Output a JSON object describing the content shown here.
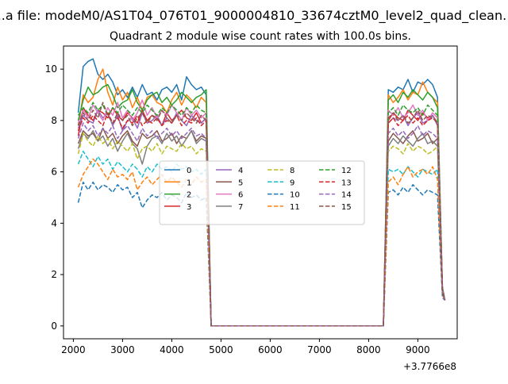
{
  "chart_data": {
    "type": "line",
    "suptitle": "...a file: modeM0/AS1T04_076T01_9000004810_33674cztM0_level2_quad_clean...",
    "title": "Quadrant 2 module wise count rates with 100.0s bins.",
    "xlabel": "",
    "ylabel": "",
    "x_offset_label": "+3.7766e8",
    "xlim": [
      1800,
      9800
    ],
    "ylim": [
      -0.5,
      10.9
    ],
    "xticks": [
      2000,
      3000,
      4000,
      5000,
      6000,
      7000,
      8000,
      9000
    ],
    "yticks": [
      0,
      2,
      4,
      6,
      8,
      10
    ],
    "grid": false,
    "legend_position": "center",
    "legend_columns": 4,
    "x": [
      2100,
      2200,
      2300,
      2400,
      2500,
      2600,
      2700,
      2800,
      2900,
      3000,
      3100,
      3200,
      3300,
      3400,
      3500,
      3600,
      3700,
      3800,
      3900,
      4000,
      4100,
      4200,
      4300,
      4400,
      4500,
      4600,
      4700,
      4800,
      4900,
      5000,
      8200,
      8300,
      8400,
      8500,
      8600,
      8700,
      8800,
      8900,
      9000,
      9100,
      9200,
      9300,
      9400,
      9500,
      9550
    ],
    "series": [
      {
        "name": "0",
        "color": "#1f77b4",
        "dash": "solid",
        "values": [
          8.3,
          10.1,
          10.3,
          10.4,
          9.8,
          9.6,
          9.8,
          9.5,
          9.0,
          9.2,
          8.9,
          9.3,
          8.9,
          9.4,
          9.0,
          9.1,
          8.8,
          9.2,
          9.3,
          9.1,
          9.4,
          8.8,
          9.7,
          9.4,
          9.2,
          9.3,
          9.0,
          0.0,
          0.0,
          0.0,
          0.0,
          0.0,
          9.2,
          9.1,
          9.3,
          9.2,
          9.6,
          9.1,
          9.5,
          9.4,
          9.6,
          9.4,
          8.9,
          1.5,
          1.0
        ]
      },
      {
        "name": "1",
        "color": "#ff7f0e",
        "dash": "solid",
        "values": [
          7.8,
          9.0,
          8.7,
          8.9,
          9.6,
          10.0,
          9.1,
          8.6,
          9.3,
          8.8,
          9.1,
          8.5,
          8.9,
          8.4,
          8.9,
          9.0,
          8.7,
          8.6,
          8.3,
          8.8,
          9.1,
          8.6,
          9.0,
          8.8,
          8.5,
          8.9,
          8.7,
          0.0,
          0.0,
          0.0,
          0.0,
          0.0,
          9.0,
          8.7,
          8.9,
          9.2,
          8.8,
          9.1,
          9.0,
          9.5,
          9.1,
          8.9,
          8.7,
          1.5,
          1.0
        ]
      },
      {
        "name": "2",
        "color": "#2ca02c",
        "dash": "solid",
        "values": [
          8.0,
          8.8,
          9.3,
          9.0,
          9.1,
          9.3,
          9.4,
          9.0,
          8.5,
          8.7,
          8.8,
          9.2,
          8.7,
          8.4,
          8.8,
          9.0,
          9.1,
          8.7,
          8.9,
          8.6,
          8.8,
          9.1,
          8.9,
          8.7,
          8.9,
          9.0,
          9.2,
          0.0,
          0.0,
          0.0,
          0.0,
          0.0,
          8.8,
          9.0,
          8.7,
          9.1,
          8.9,
          9.2,
          9.0,
          8.8,
          9.1,
          8.9,
          8.5,
          1.5,
          1.0
        ]
      },
      {
        "name": "3",
        "color": "#d62728",
        "dash": "solid",
        "values": [
          7.4,
          8.5,
          8.2,
          8.0,
          8.4,
          8.3,
          8.1,
          8.5,
          8.2,
          8.0,
          8.3,
          8.1,
          7.9,
          8.4,
          8.0,
          8.2,
          8.1,
          7.8,
          8.3,
          8.0,
          8.2,
          8.4,
          8.1,
          8.0,
          8.3,
          7.9,
          8.1,
          0.0,
          0.0,
          0.0,
          0.0,
          0.0,
          8.0,
          8.3,
          8.1,
          8.0,
          8.4,
          8.2,
          8.0,
          8.3,
          8.1,
          8.2,
          7.9,
          1.4,
          1.0
        ]
      },
      {
        "name": "4",
        "color": "#9467bd",
        "dash": "solid",
        "values": [
          7.7,
          8.2,
          8.0,
          7.9,
          8.4,
          8.1,
          8.3,
          7.8,
          8.2,
          7.6,
          8.0,
          8.1,
          7.7,
          8.3,
          7.9,
          8.0,
          8.2,
          7.8,
          8.1,
          7.9,
          8.3,
          8.0,
          7.8,
          8.2,
          8.0,
          7.9,
          8.1,
          0.0,
          0.0,
          0.0,
          0.0,
          0.0,
          7.9,
          8.1,
          8.0,
          8.2,
          7.8,
          8.1,
          8.3,
          7.9,
          8.0,
          8.2,
          7.8,
          1.4,
          1.0
        ]
      },
      {
        "name": "5",
        "color": "#8c564b",
        "dash": "solid",
        "values": [
          7.1,
          7.6,
          7.4,
          7.5,
          7.2,
          7.7,
          7.3,
          7.5,
          7.1,
          7.4,
          7.6,
          7.2,
          7.0,
          7.5,
          7.3,
          7.4,
          7.6,
          7.2,
          7.3,
          7.5,
          7.1,
          7.4,
          7.3,
          7.6,
          7.2,
          7.4,
          7.3,
          0.0,
          0.0,
          0.0,
          0.0,
          0.0,
          7.2,
          7.5,
          7.3,
          7.1,
          7.4,
          7.6,
          7.2,
          7.3,
          7.5,
          7.1,
          7.3,
          1.3,
          1.0
        ]
      },
      {
        "name": "6",
        "color": "#e377c2",
        "dash": "solid",
        "values": [
          7.9,
          8.4,
          8.1,
          8.6,
          8.3,
          8.0,
          8.5,
          8.2,
          8.7,
          8.1,
          8.4,
          8.0,
          8.3,
          8.8,
          8.2,
          8.5,
          8.1,
          8.4,
          8.2,
          8.6,
          8.3,
          8.0,
          8.5,
          8.2,
          8.4,
          8.1,
          8.3,
          0.0,
          0.0,
          0.0,
          0.0,
          0.0,
          8.4,
          8.2,
          8.5,
          8.1,
          8.3,
          8.6,
          8.2,
          8.4,
          8.0,
          8.3,
          8.1,
          1.4,
          1.0
        ]
      },
      {
        "name": "7",
        "color": "#7f7f7f",
        "dash": "solid",
        "values": [
          6.9,
          7.5,
          7.3,
          7.6,
          7.2,
          7.4,
          7.0,
          7.3,
          6.8,
          7.2,
          7.5,
          7.1,
          6.9,
          6.3,
          7.0,
          7.3,
          7.4,
          7.1,
          7.5,
          7.2,
          7.4,
          7.0,
          7.3,
          7.6,
          7.1,
          7.3,
          7.2,
          0.0,
          0.0,
          0.0,
          0.0,
          0.0,
          7.0,
          7.3,
          7.1,
          7.4,
          7.2,
          7.0,
          7.3,
          7.5,
          7.1,
          7.2,
          7.0,
          1.3,
          1.0
        ]
      },
      {
        "name": "8",
        "color": "#bcbd22",
        "dash": "dashed",
        "values": [
          6.7,
          7.5,
          7.2,
          7.0,
          7.4,
          7.1,
          7.3,
          6.9,
          7.2,
          7.0,
          6.8,
          7.1,
          6.5,
          6.9,
          7.0,
          6.8,
          7.1,
          6.7,
          7.0,
          6.9,
          6.8,
          7.1,
          6.9,
          7.0,
          6.7,
          6.9,
          6.8,
          0.0,
          0.0,
          0.0,
          0.0,
          0.0,
          6.8,
          7.0,
          6.9,
          6.7,
          7.1,
          6.8,
          7.0,
          6.9,
          6.7,
          6.8,
          7.0,
          1.3,
          1.0
        ]
      },
      {
        "name": "9",
        "color": "#17becf",
        "dash": "dashed",
        "values": [
          6.3,
          6.8,
          6.5,
          6.2,
          6.6,
          6.3,
          6.5,
          6.1,
          6.4,
          6.2,
          6.0,
          6.3,
          6.1,
          5.8,
          6.2,
          6.0,
          6.3,
          6.1,
          6.2,
          6.0,
          6.3,
          6.1,
          6.2,
          6.0,
          6.1,
          5.9,
          6.1,
          0.0,
          0.0,
          0.0,
          0.0,
          0.0,
          6.1,
          6.0,
          6.1,
          5.9,
          6.2,
          6.0,
          5.8,
          6.1,
          6.0,
          5.9,
          6.1,
          1.2,
          1.0
        ]
      },
      {
        "name": "10",
        "color": "#1f77b4",
        "dash": "dashed",
        "values": [
          4.8,
          5.6,
          5.3,
          5.6,
          5.3,
          5.5,
          5.4,
          5.2,
          5.5,
          5.3,
          5.4,
          5.0,
          5.2,
          4.6,
          4.9,
          5.1,
          5.0,
          5.2,
          4.9,
          5.1,
          5.0,
          4.8,
          5.2,
          5.0,
          5.1,
          4.9,
          5.0,
          0.0,
          0.0,
          0.0,
          0.0,
          0.0,
          5.2,
          5.3,
          5.1,
          5.4,
          5.2,
          5.5,
          5.3,
          5.1,
          5.3,
          5.2,
          5.1,
          1.1,
          1.0
        ]
      },
      {
        "name": "11",
        "color": "#ff7f0e",
        "dash": "dashed",
        "values": [
          5.4,
          5.9,
          6.2,
          6.5,
          6.3,
          6.0,
          5.7,
          6.1,
          5.8,
          5.9,
          5.7,
          6.0,
          5.3,
          5.6,
          5.8,
          5.5,
          5.7,
          5.9,
          5.6,
          5.8,
          5.6,
          5.4,
          5.7,
          5.5,
          5.8,
          5.6,
          5.7,
          0.0,
          0.0,
          0.0,
          0.0,
          0.0,
          5.6,
          5.8,
          5.5,
          5.9,
          6.2,
          5.8,
          6.0,
          6.1,
          5.9,
          6.2,
          5.7,
          1.2,
          1.0
        ]
      },
      {
        "name": "12",
        "color": "#2ca02c",
        "dash": "dashed",
        "values": [
          8.2,
          8.5,
          8.3,
          8.7,
          8.4,
          8.6,
          8.2,
          8.5,
          8.3,
          8.6,
          8.4,
          8.2,
          8.5,
          8.3,
          8.6,
          8.4,
          8.2,
          8.5,
          8.3,
          8.6,
          8.4,
          8.2,
          8.5,
          8.3,
          8.6,
          8.4,
          8.3,
          0.0,
          0.0,
          0.0,
          0.0,
          0.0,
          8.3,
          8.5,
          8.2,
          8.6,
          8.4,
          8.3,
          8.5,
          8.2,
          8.6,
          8.4,
          8.2,
          1.4,
          1.0
        ]
      },
      {
        "name": "13",
        "color": "#d62728",
        "dash": "dashed",
        "values": [
          7.6,
          8.1,
          7.9,
          8.2,
          8.0,
          7.8,
          8.3,
          7.9,
          8.1,
          7.7,
          8.0,
          7.9,
          8.2,
          7.8,
          8.0,
          7.9,
          8.1,
          7.8,
          8.0,
          7.9,
          8.2,
          7.8,
          8.0,
          7.9,
          8.1,
          7.8,
          8.0,
          0.0,
          0.0,
          0.0,
          0.0,
          0.0,
          7.9,
          8.1,
          7.8,
          8.0,
          8.2,
          7.9,
          8.1,
          7.8,
          8.0,
          8.1,
          7.9,
          1.4,
          1.0
        ]
      },
      {
        "name": "14",
        "color": "#9467bd",
        "dash": "dashed",
        "values": [
          7.3,
          7.9,
          7.6,
          7.8,
          7.4,
          7.7,
          7.5,
          7.8,
          7.3,
          7.6,
          7.8,
          7.5,
          7.2,
          7.7,
          7.4,
          7.6,
          7.3,
          7.5,
          7.7,
          7.4,
          7.6,
          7.3,
          7.5,
          7.7,
          7.4,
          7.5,
          7.3,
          0.0,
          0.0,
          0.0,
          0.0,
          0.0,
          7.5,
          7.7,
          7.4,
          7.6,
          7.3,
          7.5,
          7.8,
          7.4,
          7.6,
          7.5,
          7.3,
          1.3,
          1.0
        ]
      },
      {
        "name": "15",
        "color": "#8c564b",
        "dash": "dashed",
        "values": [
          7.8,
          8.3,
          8.0,
          8.4,
          8.1,
          8.7,
          8.2,
          7.9,
          8.3,
          8.0,
          8.2,
          7.8,
          8.1,
          8.3,
          7.9,
          8.2,
          8.0,
          8.4,
          8.1,
          7.9,
          8.2,
          8.0,
          8.3,
          8.1,
          7.9,
          8.2,
          8.0,
          0.0,
          0.0,
          0.0,
          0.0,
          0.0,
          8.1,
          8.3,
          8.0,
          8.2,
          7.9,
          8.1,
          8.4,
          8.0,
          8.2,
          8.1,
          7.9,
          1.4,
          1.0
        ]
      }
    ]
  }
}
